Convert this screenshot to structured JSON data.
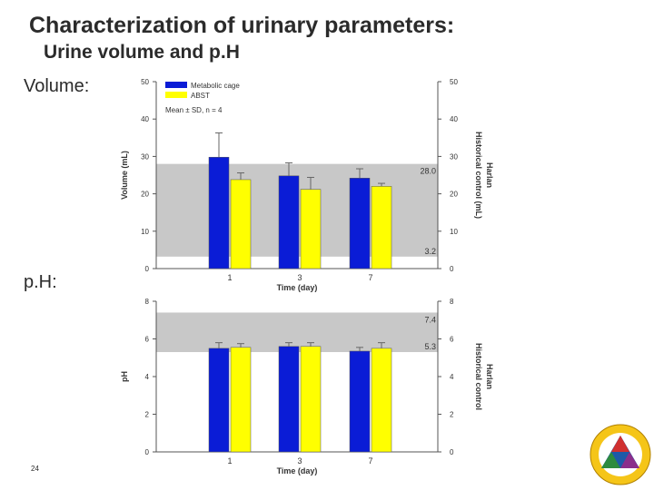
{
  "slide": {
    "title": "Characterization of urinary parameters:",
    "subtitle": "Urine volume and p.H",
    "volume_label": "Volume:",
    "ph_label": "p.H:",
    "page_number": "24"
  },
  "colors": {
    "metabolic": "#0a1cd6",
    "absT": "#ffff00",
    "band": "#c8c8c8"
  },
  "chart_data": [
    {
      "type": "bar",
      "categories": [
        "1",
        "3",
        "7"
      ],
      "series": [
        {
          "name": "Metabolic cage",
          "values": [
            29.8,
            24.8,
            24.2
          ],
          "errors": [
            6.5,
            3.5,
            2.5
          ]
        },
        {
          "name": "ABST",
          "values": [
            23.8,
            21.2,
            22.0
          ],
          "errors": [
            1.8,
            3.2,
            0.8
          ]
        }
      ],
      "xlabel": "Time (day)",
      "ylabel": "Volume (mL)",
      "ylim": [
        0,
        50
      ],
      "yticks": [
        0,
        10,
        20,
        30,
        40,
        50
      ],
      "right_ylabel_line1": "Harlan",
      "right_ylabel_line2": "Historical control (mL)",
      "reference_band": {
        "low": 3.2,
        "high": 28.0,
        "low_label": "3.2",
        "high_label": "28.0"
      },
      "legend": [
        "Metabolic cage",
        "ABST"
      ],
      "note": "Mean ± SD, n = 4",
      "legend_position": "top-left"
    },
    {
      "type": "bar",
      "categories": [
        "1",
        "3",
        "7"
      ],
      "series": [
        {
          "name": "Metabolic cage",
          "values": [
            5.5,
            5.6,
            5.35
          ],
          "errors": [
            0.3,
            0.2,
            0.2
          ]
        },
        {
          "name": "ABST",
          "values": [
            5.55,
            5.6,
            5.5
          ],
          "errors": [
            0.2,
            0.2,
            0.3
          ]
        }
      ],
      "xlabel": "Time (day)",
      "ylabel": "pH",
      "ylim": [
        0,
        8
      ],
      "yticks": [
        0,
        2,
        4,
        6,
        8
      ],
      "right_ylabel_line1": "Harlan",
      "right_ylabel_line2": "Historical control",
      "reference_band": {
        "low": 5.3,
        "high": 7.4,
        "low_label": "5.3",
        "high_label": "7.4"
      }
    }
  ]
}
